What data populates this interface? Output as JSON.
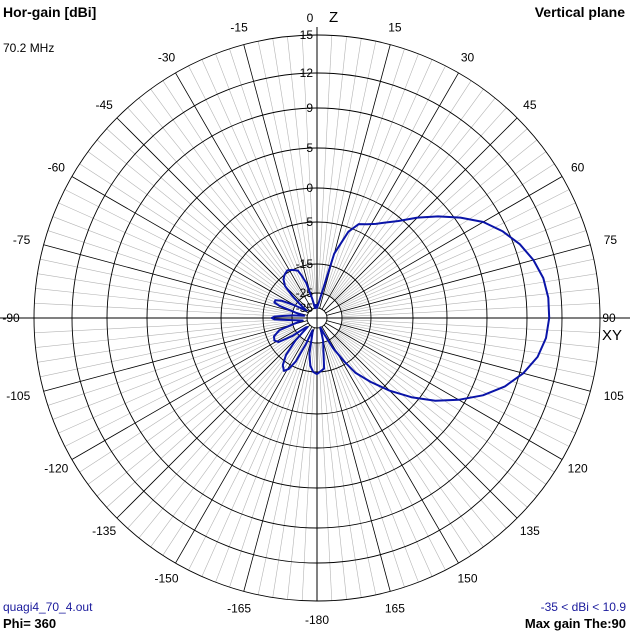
{
  "header": {
    "title_left": "Hor-gain [dBi]",
    "title_right": "Vertical plane",
    "frequency": "70.2 MHz"
  },
  "footer": {
    "filename": "quagi4_70_4.out",
    "phi": "Phi= 360",
    "range": "-35 < dBi < 10.9",
    "max_gain": "Max gain The:90"
  },
  "colors": {
    "pattern": "#0a14a8",
    "grid": "#000000",
    "minor_grid": "#b4b4b4",
    "footer_text": "#1a1a9c"
  },
  "chart_data": {
    "type": "polar",
    "title": "Vertical plane",
    "units": "dBi",
    "axis_top_label": "Z",
    "axis_right_label": "XY",
    "angle_tick_step_deg": 15,
    "angle_labels": {
      "right": [
        "0",
        "15",
        "30",
        "45",
        "60",
        "75",
        "90",
        "105",
        "120",
        "135",
        "150",
        "165",
        "-180"
      ],
      "left": [
        "-15",
        "-30",
        "-45",
        "-60",
        "-75",
        "-90",
        "-105",
        "-120",
        "-135",
        "-150",
        "-165"
      ]
    },
    "radial_ticks": [
      "15",
      "12",
      "9",
      "5",
      "0",
      "-5",
      "-15",
      "-25",
      "-35"
    ],
    "radial_tick_values": [
      15,
      12,
      9,
      5,
      0,
      -5,
      -15,
      -25,
      -35
    ],
    "min_dbi": -35,
    "max_dbi": 10.9,
    "series": [
      {
        "theta_deg": [
          0,
          8,
          15,
          20,
          24,
          28,
          32,
          35,
          40,
          45,
          50,
          55,
          60,
          65,
          70,
          75,
          80,
          85,
          90,
          95,
          100,
          105,
          110,
          115,
          120,
          125,
          130,
          135,
          140,
          145,
          148,
          152,
          156,
          160,
          165,
          172,
          180,
          184,
          188,
          192,
          196,
          200,
          203,
          206,
          209,
          212,
          216,
          220,
          224,
          226,
          230,
          234,
          238,
          242,
          247,
          252,
          256,
          260,
          264,
          268,
          270,
          272,
          276,
          280,
          284,
          288,
          290,
          293,
          296,
          299,
          302,
          305,
          309,
          312,
          315,
          319,
          323,
          328,
          333,
          338,
          340,
          343,
          346,
          349,
          352,
          356,
          360
        ],
        "gain_dbi": [
          -35,
          -30,
          -12,
          -6,
          -4,
          -3.5,
          -2.8,
          -2,
          -0.5,
          1.5,
          3.5,
          5.5,
          7.2,
          8.5,
          9.5,
          10.2,
          10.7,
          10.9,
          10.9,
          10.7,
          10.2,
          9.3,
          8,
          6.3,
          4.2,
          1.8,
          -1,
          -4,
          -8,
          -12,
          -16,
          -22,
          -30,
          -35,
          -26,
          -16,
          -14.5,
          -15,
          -17,
          -21,
          -30,
          -33,
          -24,
          -17,
          -14,
          -13,
          -14,
          -17,
          -23,
          -33,
          -32,
          -23,
          -18,
          -17,
          -17.5,
          -20,
          -26,
          -32,
          -27,
          -19,
          -18,
          -19,
          -25,
          -33,
          -27,
          -20,
          -18,
          -18,
          -20,
          -24,
          -30,
          -33,
          -27,
          -22,
          -18,
          -16,
          -15,
          -14.5,
          -15,
          -16,
          -18,
          -21,
          -28,
          -35,
          -33,
          -33,
          -35
        ]
      }
    ]
  }
}
